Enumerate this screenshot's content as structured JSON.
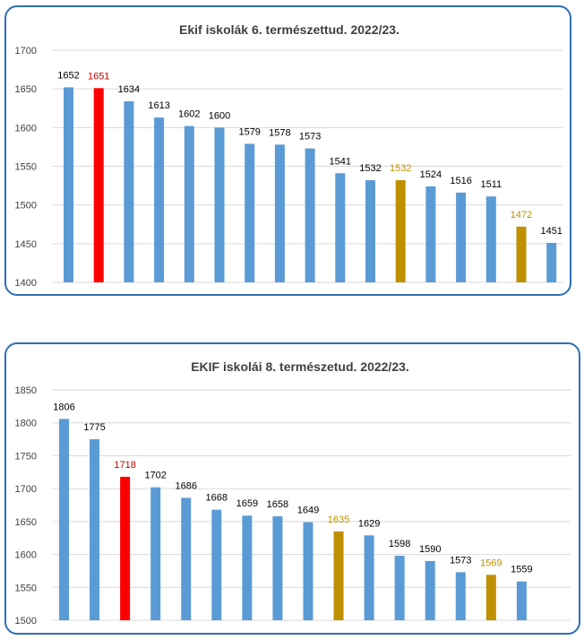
{
  "chart_data": [
    {
      "type": "bar",
      "title": "Ekif iskolák 6. természettud. 2022/23.",
      "xlabel": "",
      "ylabel": "",
      "ylim": [
        1400,
        1700
      ],
      "yticks": [
        "1400",
        "1450",
        "1500",
        "1550",
        "1600",
        "1650",
        "1700"
      ],
      "grid": true,
      "legend": "none",
      "values": [
        1652,
        1651,
        1634,
        1613,
        1602,
        1600,
        1579,
        1578,
        1573,
        1541,
        1532,
        1532,
        1524,
        1516,
        1511,
        1472,
        1451
      ],
      "colors": [
        "#5b9bd5",
        "#ff0000",
        "#5b9bd5",
        "#5b9bd5",
        "#5b9bd5",
        "#5b9bd5",
        "#5b9bd5",
        "#5b9bd5",
        "#5b9bd5",
        "#5b9bd5",
        "#5b9bd5",
        "#bf9000",
        "#5b9bd5",
        "#5b9bd5",
        "#5b9bd5",
        "#bf9000",
        "#5b9bd5"
      ],
      "label_colors": [
        "#000000",
        "#c00000",
        "#000000",
        "#000000",
        "#000000",
        "#000000",
        "#000000",
        "#000000",
        "#000000",
        "#000000",
        "#000000",
        "#bf9000",
        "#000000",
        "#000000",
        "#000000",
        "#bf9000",
        "#000000"
      ]
    },
    {
      "type": "bar",
      "title": "EKIF iskolái 8.  természetud. 2022/23.",
      "xlabel": "",
      "ylabel": "",
      "ylim": [
        1500,
        1850
      ],
      "yticks": [
        "1500",
        "1550",
        "1600",
        "1650",
        "1700",
        "1750",
        "1800",
        "1850"
      ],
      "grid": true,
      "legend": "none",
      "values": [
        1806,
        1775,
        1718,
        1702,
        1686,
        1668,
        1659,
        1658,
        1649,
        1635,
        1629,
        1598,
        1590,
        1573,
        1569,
        1559
      ],
      "colors": [
        "#5b9bd5",
        "#5b9bd5",
        "#ff0000",
        "#5b9bd5",
        "#5b9bd5",
        "#5b9bd5",
        "#5b9bd5",
        "#5b9bd5",
        "#5b9bd5",
        "#bf9000",
        "#5b9bd5",
        "#5b9bd5",
        "#5b9bd5",
        "#5b9bd5",
        "#bf9000",
        "#5b9bd5"
      ],
      "label_colors": [
        "#000000",
        "#000000",
        "#c00000",
        "#000000",
        "#000000",
        "#000000",
        "#000000",
        "#000000",
        "#000000",
        "#bf9000",
        "#000000",
        "#000000",
        "#000000",
        "#000000",
        "#bf9000",
        "#000000"
      ]
    }
  ]
}
